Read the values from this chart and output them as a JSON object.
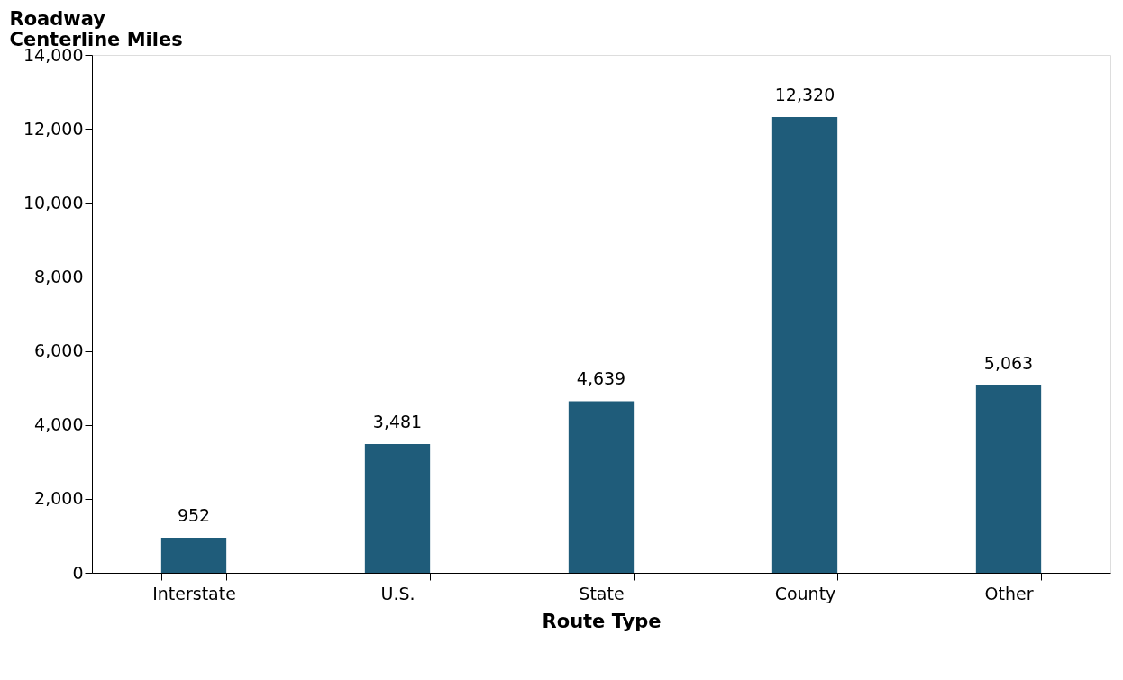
{
  "chart_data": {
    "type": "bar",
    "xlabel": "Route Type",
    "ylabel": "Roadway\nCenterline Miles",
    "categories": [
      "Interstate",
      "U.S.",
      "State",
      "County",
      "Other"
    ],
    "values": [
      952,
      3481,
      4639,
      12320,
      5063
    ],
    "color": "#1f5c7a",
    "value_labels": [
      "952",
      "3,481",
      "4,639",
      "12,320",
      "5,063"
    ],
    "ylim": [
      0,
      14000
    ],
    "yticks": [
      0,
      {
        "value": 2000,
        "label": "2,000"
      },
      {
        "value": 4000,
        "label": "4,000"
      },
      {
        "value": 6000,
        "label": "6,000"
      },
      {
        "value": 8000,
        "label": "8,000"
      },
      {
        "value": 10000,
        "label": "10,000"
      },
      {
        "value": 12000,
        "label": "12,000"
      },
      {
        "value": 14000,
        "label": "14,000"
      }
    ],
    "grid": false
  }
}
